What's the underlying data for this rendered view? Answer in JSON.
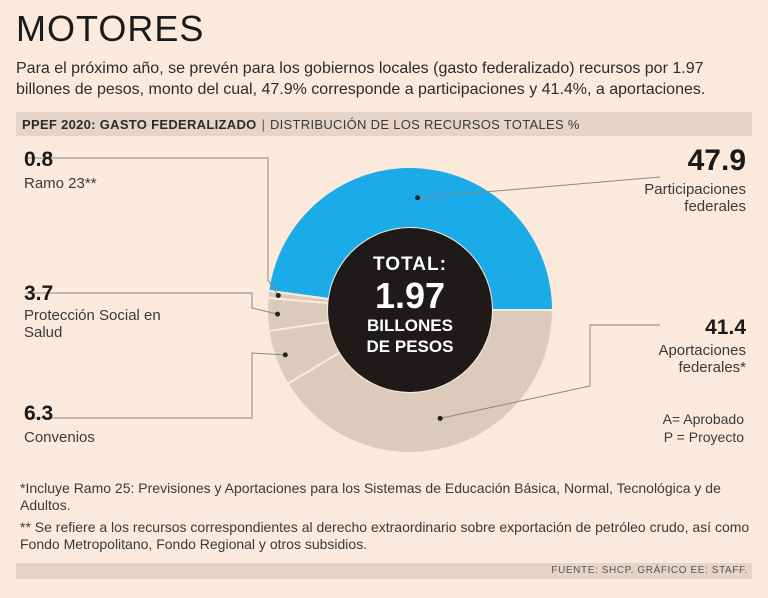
{
  "header": {
    "title": "MOTORES",
    "intro": "Para el próximo año, se prevén para los gobiernos locales (gasto federalizado) recursos por 1.97 billones de pesos, monto del cual, 47.9% corresponde a participaciones y 41.4%, a aportaciones."
  },
  "subheader": {
    "bold": "PPEF 2020: GASTO FEDERALIZADO",
    "separator": "|",
    "light": "DISTRIBUCIÓN DE LOS RECURSOS TOTALES %"
  },
  "center": {
    "line1": "TOTAL:",
    "line2": "1.97",
    "line3": "BILLONES",
    "line4": "DE PESOS"
  },
  "legend_note": {
    "line1": "A= Aprobado",
    "line2": "P = Proyecto"
  },
  "footnotes": {
    "note1": "*Incluye Ramo 25: Previsiones y Aportaciones para los Sistemas de Educación Básica, Normal, Tecnológica y de Adultos.",
    "note2": "** Se refiere a los recursos correspondientes al derecho extraordinario sobre exportación de petróleo crudo, así como Fondo Metropolitano, Fondo Regional y otros subsidios."
  },
  "source": "FUENTE: SHCP. GRÁFICO EE: STAFF.",
  "colors": {
    "participaciones": "#1aabe8",
    "others": "#dccbbb",
    "separator": "#fbe9dc",
    "center": "#1f1a1a",
    "background": "#fbe9dc"
  },
  "chart_data": {
    "type": "pie",
    "title": "PPEF 2020: GASTO FEDERALIZADO",
    "subtitle": "DISTRIBUCIÓN DE LOS RECURSOS TOTALES %",
    "slices": [
      {
        "label": "Participaciones federales",
        "value": 47.9,
        "value_label": "47.9"
      },
      {
        "label": "Aportaciones federales*",
        "value": 41.4,
        "value_label": "41.4"
      },
      {
        "label": "Convenios",
        "value": 6.3,
        "value_label": "6.3"
      },
      {
        "label": "Protección Social en Salud",
        "value": 3.7,
        "value_label": "3.7"
      },
      {
        "label": "Ramo 23**",
        "value": 0.8,
        "value_label": "0.8"
      }
    ]
  }
}
